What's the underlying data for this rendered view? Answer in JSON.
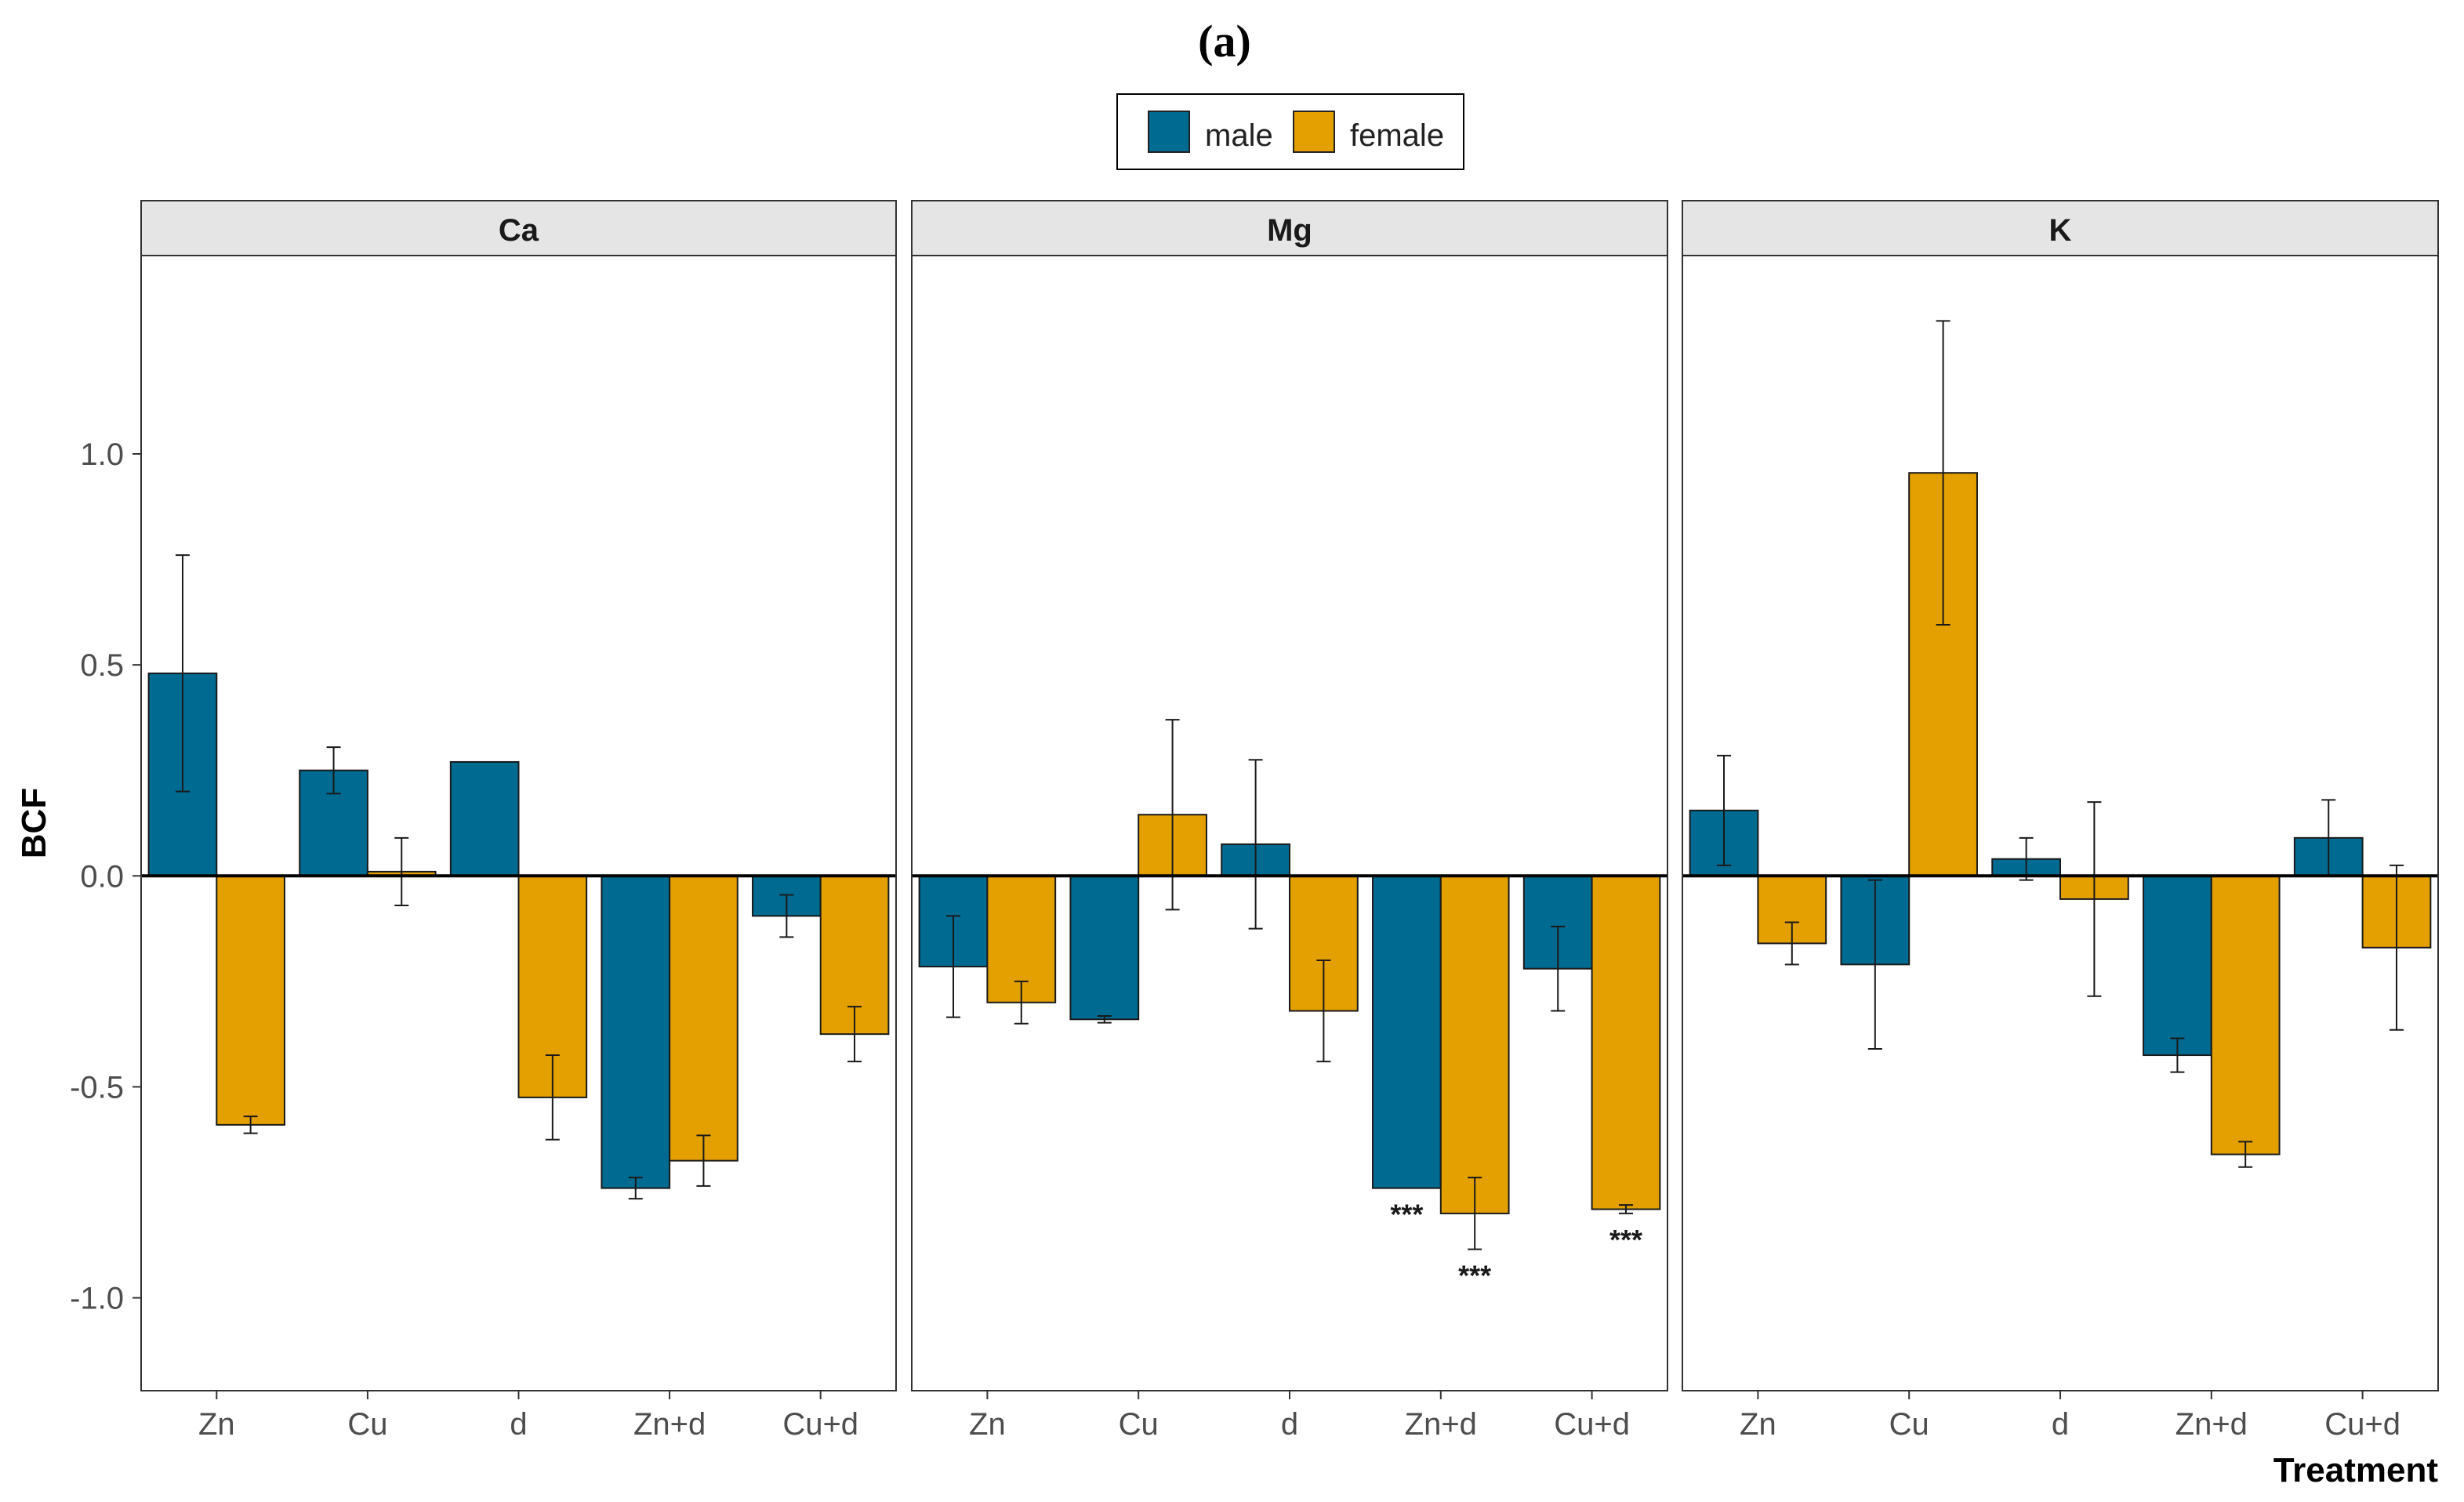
{
  "figure_label": "(a)",
  "legend": [
    {
      "label": "male",
      "color": "#006A91"
    },
    {
      "label": "female",
      "color": "#E3A000"
    }
  ],
  "ylabel": "BCF",
  "xlabel": "Treatment",
  "chart_data": {
    "type": "bar",
    "title": "(a)",
    "xlabel": "Treatment",
    "ylabel": "BCF",
    "ylim": [
      -1.22,
      1.47
    ],
    "yticks": [
      -1.0,
      -0.5,
      0.0,
      0.5,
      1.0
    ],
    "ytick_labels": [
      "-1.0",
      "-0.5",
      "0.0",
      "0.5",
      "1.0"
    ],
    "categories": [
      "Zn",
      "Cu",
      "d",
      "Zn+d",
      "Cu+d"
    ],
    "grid": false,
    "legend_position": "top",
    "panels": [
      {
        "name": "Ca",
        "series": [
          {
            "name": "male",
            "color": "#006A91",
            "values": [
              0.48,
              0.25,
              0.27,
              -0.74,
              -0.095
            ],
            "errors": [
              0.28,
              0.055,
              null,
              0.025,
              0.05
            ]
          },
          {
            "name": "female",
            "color": "#E3A000",
            "values": [
              -0.59,
              0.01,
              -0.525,
              -0.675,
              -0.375
            ],
            "errors": [
              0.02,
              0.08,
              0.1,
              0.06,
              0.065
            ]
          }
        ],
        "annotations": []
      },
      {
        "name": "Mg",
        "series": [
          {
            "name": "male",
            "color": "#006A91",
            "values": [
              -0.215,
              -0.34,
              0.075,
              -0.74,
              -0.22
            ],
            "errors": [
              0.12,
              0.008,
              0.2,
              null,
              0.1
            ]
          },
          {
            "name": "female",
            "color": "#E3A000",
            "values": [
              -0.3,
              0.145,
              -0.32,
              -0.8,
              -0.79
            ],
            "errors": [
              0.05,
              0.225,
              0.12,
              0.085,
              0.01
            ]
          }
        ],
        "annotations": [
          {
            "category": "Zn+d",
            "series": "male",
            "text": "***"
          },
          {
            "category": "Zn+d",
            "series": "female",
            "text": "***"
          },
          {
            "category": "Cu+d",
            "series": "female",
            "text": "***"
          }
        ]
      },
      {
        "name": "K",
        "series": [
          {
            "name": "male",
            "color": "#006A91",
            "values": [
              0.155,
              -0.21,
              0.04,
              -0.425,
              0.09
            ],
            "errors": [
              0.13,
              0.2,
              0.05,
              0.04,
              0.09
            ]
          },
          {
            "name": "female",
            "color": "#E3A000",
            "values": [
              -0.16,
              0.955,
              -0.055,
              -0.66,
              -0.17
            ],
            "errors": [
              0.05,
              0.36,
              0.23,
              0.03,
              0.195
            ]
          }
        ],
        "annotations": []
      }
    ]
  }
}
